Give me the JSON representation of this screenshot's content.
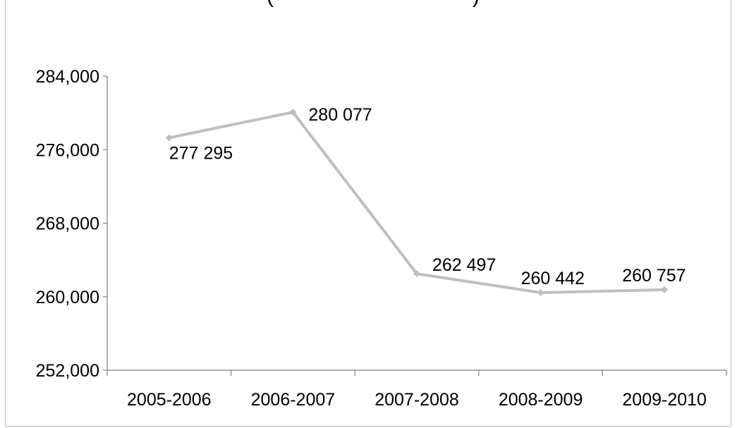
{
  "chart_data": {
    "type": "line",
    "title": "",
    "xlabel": "",
    "ylabel": "",
    "categories": [
      "2005-2006",
      "2006-2007",
      "2007-2008",
      "2008-2009",
      "2009-2010"
    ],
    "series": [
      {
        "values": [
          277295,
          280077,
          262497,
          260442,
          260757
        ],
        "data_labels": [
          "277 295",
          "280 077",
          "262 497",
          "260 442",
          "260 757"
        ],
        "color": "#bfbfbf"
      }
    ],
    "ylim": [
      252000,
      284000
    ],
    "yticks": [
      252000,
      260000,
      268000,
      276000,
      284000
    ],
    "ytick_labels": [
      "252,000",
      "260,000",
      "268,000",
      "276,000",
      "284,000"
    ],
    "grid": false,
    "legend": "none",
    "axis_color": "#808080"
  }
}
